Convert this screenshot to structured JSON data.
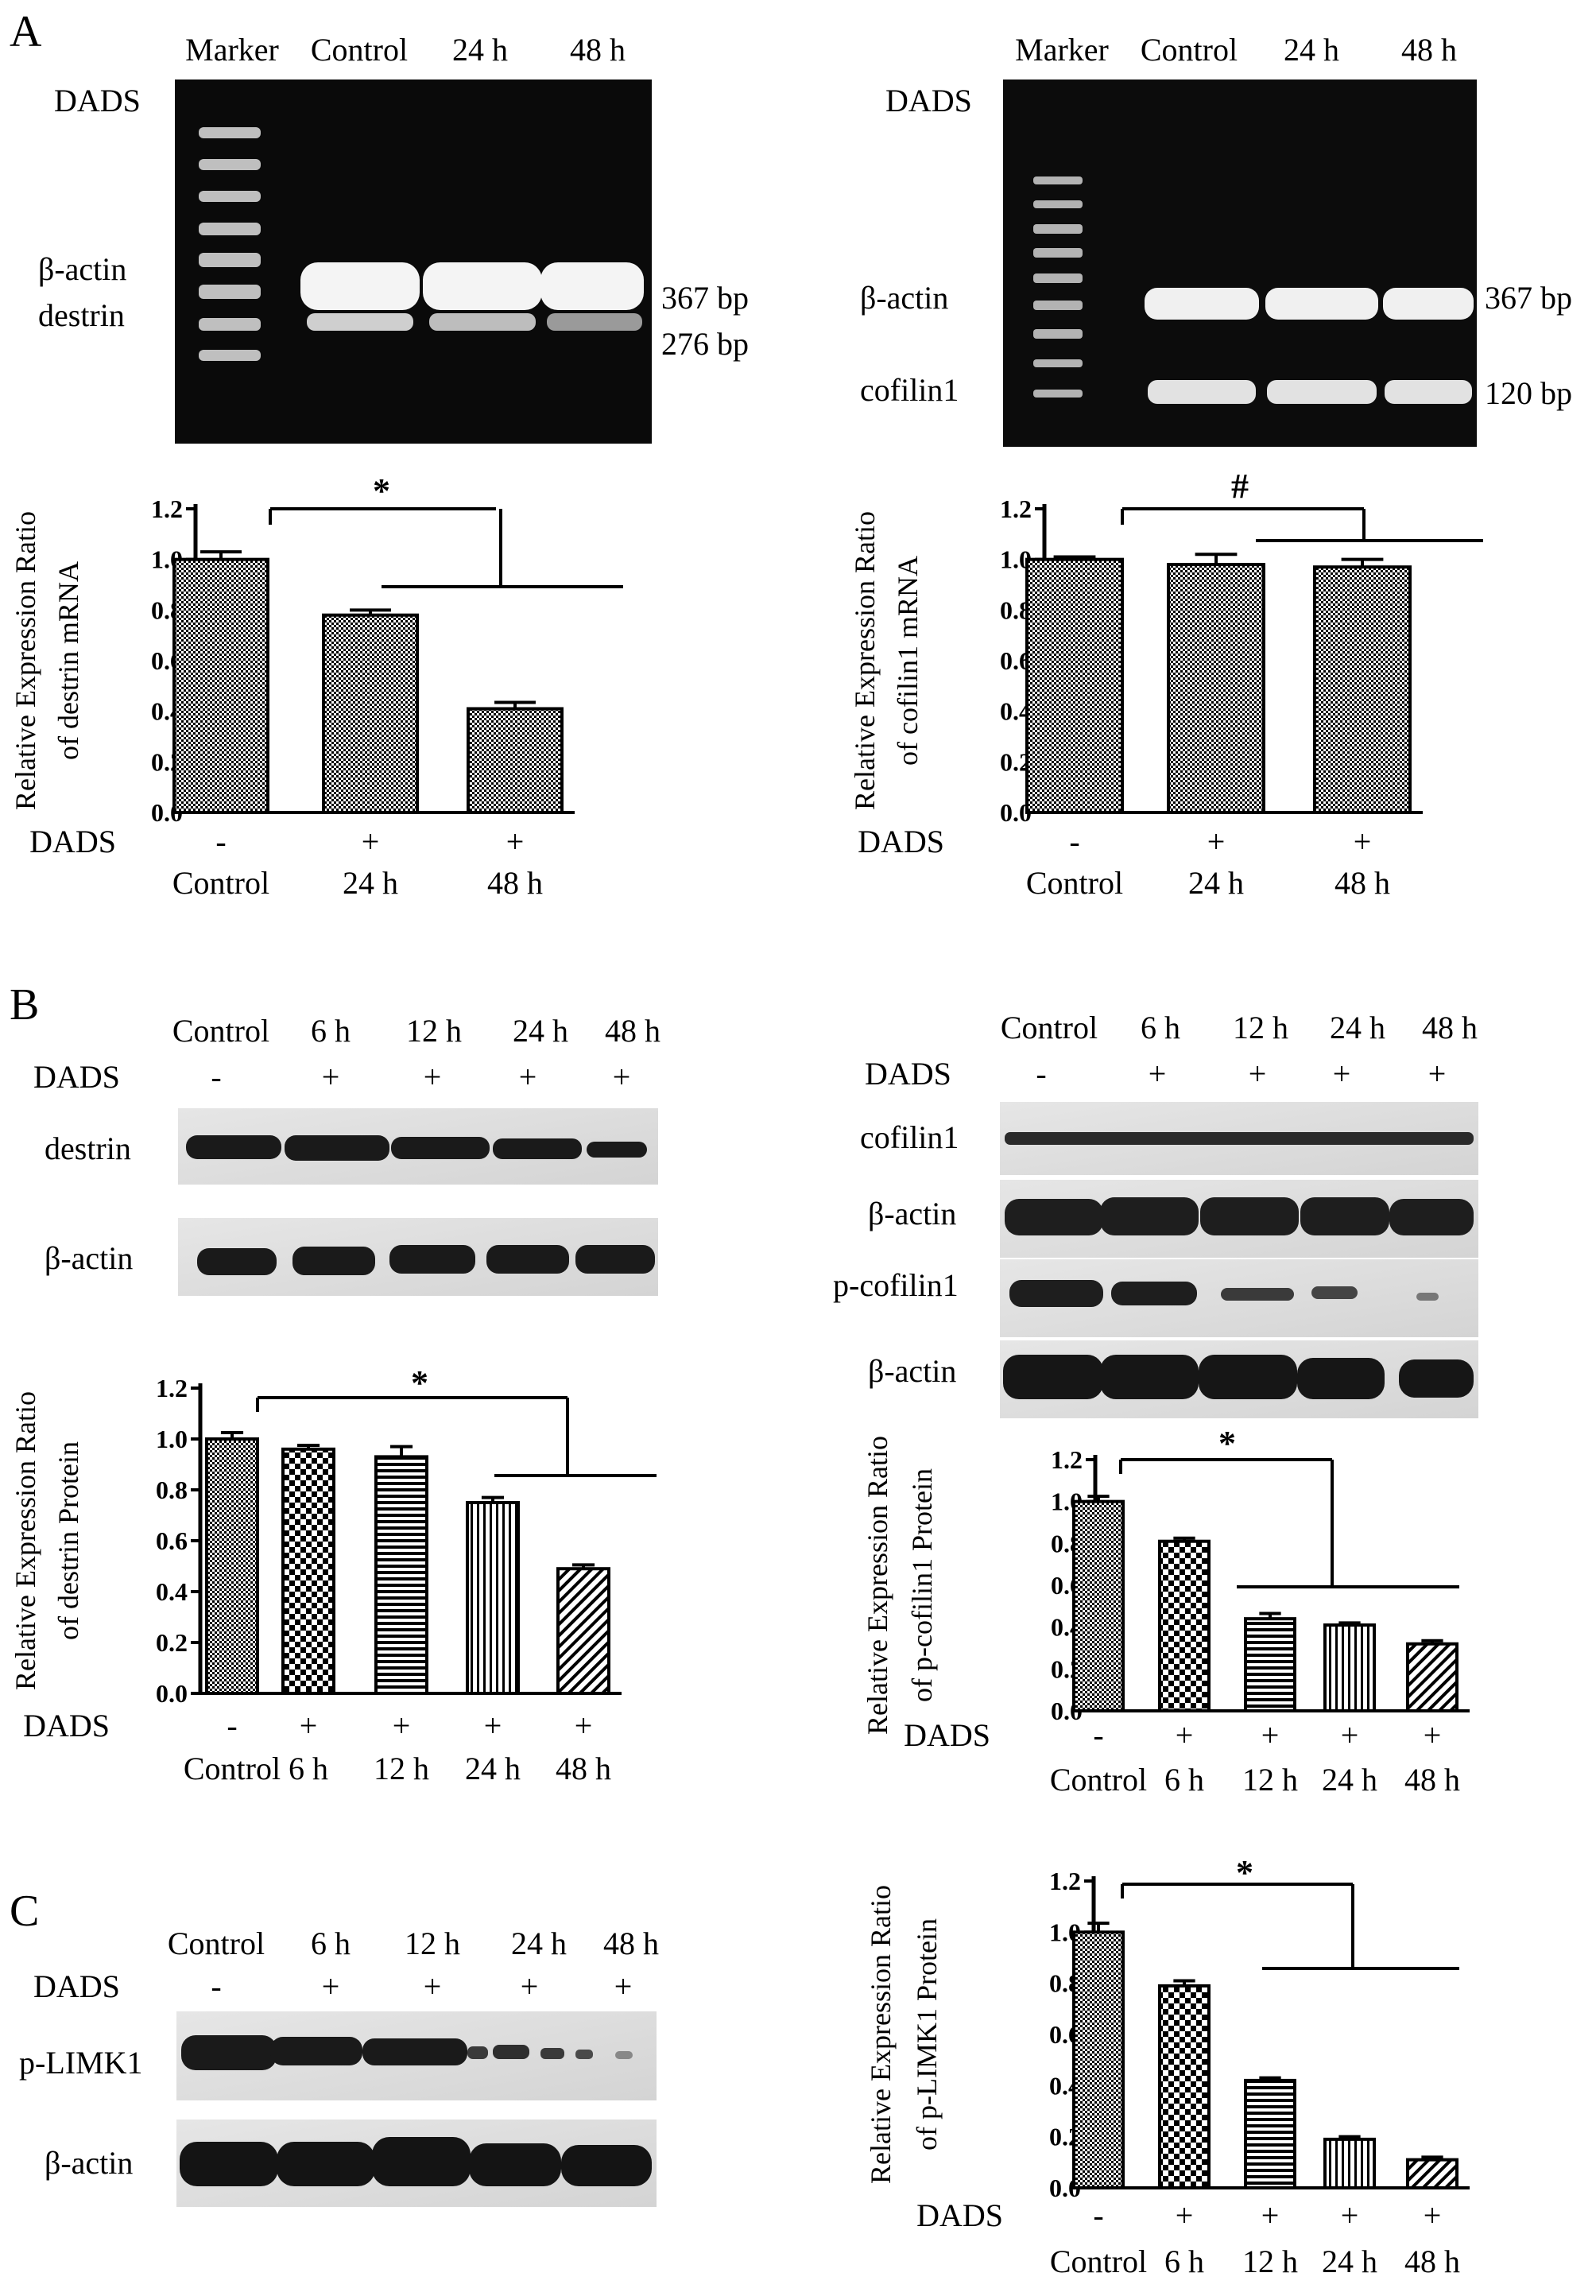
{
  "panels": [
    {
      "letter": "A"
    },
    {
      "letter": "B"
    },
    {
      "letter": "C"
    }
  ],
  "gels": [
    {
      "panel": "A-left",
      "kind": "agarose",
      "lane_labels": [
        "Marker",
        "Control",
        "24 h",
        "48 h"
      ],
      "dads_label": "DADS",
      "dads_signs": [
        "-",
        "+",
        "+"
      ],
      "band_labels": [
        "β-actin",
        "destrin"
      ],
      "size_labels": [
        "367 bp",
        "276 bp"
      ]
    },
    {
      "panel": "A-right",
      "kind": "agarose",
      "lane_labels": [
        "Marker",
        "Control",
        "24 h",
        "48 h"
      ],
      "dads_label": "DADS",
      "dads_signs": [
        "-",
        "+",
        "+"
      ],
      "band_labels": [
        "β-actin",
        "cofilin1"
      ],
      "size_labels": [
        "367 bp",
        "120 bp"
      ]
    },
    {
      "panel": "B-left",
      "kind": "western",
      "lane_labels": [
        "Control",
        "6 h",
        "12 h",
        "24 h",
        "48 h"
      ],
      "dads_label": "DADS",
      "dads_signs": [
        "-",
        "+",
        "+",
        "+",
        "+"
      ],
      "blot_labels": [
        "destrin",
        "β-actin"
      ]
    },
    {
      "panel": "B-right",
      "kind": "western",
      "lane_labels": [
        "Control",
        "6 h",
        "12 h",
        "24 h",
        "48 h"
      ],
      "dads_label": "DADS",
      "dads_signs": [
        "-",
        "+",
        "+",
        "+",
        "+"
      ],
      "blot_labels": [
        "cofilin1",
        "β-actin",
        "p-cofilin1",
        "β-actin"
      ]
    },
    {
      "panel": "C-left",
      "kind": "western",
      "lane_labels": [
        "Control",
        "6 h",
        "12 h",
        "24 h",
        "48 h"
      ],
      "dads_label": "DADS",
      "dads_signs": [
        "-",
        "+",
        "+",
        "+",
        "+"
      ],
      "blot_labels": [
        "p-LIMK1",
        "β-actin"
      ]
    }
  ],
  "chart_data": [
    {
      "type": "bar",
      "panel": "A-left",
      "ylabel": "Relative Expression Ratio of destrin mRNA",
      "ylim": [
        0,
        1.2
      ],
      "yticks": [
        "0.0",
        "0.2",
        "0.4",
        "0.6",
        "0.8",
        "1.0",
        "1.2"
      ],
      "categories": [
        "Control",
        "24 h",
        "48 h"
      ],
      "dads_label": "DADS",
      "dads_signs": [
        "-",
        "+",
        "+"
      ],
      "values": [
        1.0,
        0.78,
        0.41
      ],
      "errors": [
        0.03,
        0.02,
        0.025
      ],
      "significance": "*",
      "grid": false
    },
    {
      "type": "bar",
      "panel": "A-right",
      "ylabel": "Relative Expression Ratio of cofilin1 mRNA",
      "ylim": [
        0,
        1.2
      ],
      "yticks": [
        "0.0",
        "0.2",
        "0.4",
        "0.6",
        "0.8",
        "1.0",
        "1.2"
      ],
      "categories": [
        "Control",
        "24 h",
        "48 h"
      ],
      "dads_label": "DADS",
      "dads_signs": [
        "-",
        "+",
        "+"
      ],
      "values": [
        1.0,
        0.98,
        0.97
      ],
      "errors": [
        0.01,
        0.04,
        0.03
      ],
      "significance": "#",
      "grid": false
    },
    {
      "type": "bar",
      "panel": "B-left",
      "ylabel": "Relative Expression Ratio of destrin Protein",
      "ylim": [
        0,
        1.2
      ],
      "yticks": [
        "0.0",
        "0.2",
        "0.4",
        "0.6",
        "0.8",
        "1.0",
        "1.2"
      ],
      "categories": [
        "Control",
        "6 h",
        "12 h",
        "24 h",
        "48 h"
      ],
      "dads_label": "DADS",
      "dads_signs": [
        "-",
        "+",
        "+",
        "+",
        "+"
      ],
      "values": [
        1.0,
        0.96,
        0.93,
        0.75,
        0.49
      ],
      "errors": [
        0.025,
        0.015,
        0.04,
        0.02,
        0.015
      ],
      "significance": "*",
      "grid": false
    },
    {
      "type": "bar",
      "panel": "B-right",
      "ylabel": "Relative Expression Ratio of p-cofilin1 Protein",
      "ylim": [
        0,
        1.2
      ],
      "yticks": [
        "0.0",
        "0.2",
        "0.4",
        "0.6",
        "0.8",
        "1.0",
        "1.2"
      ],
      "categories": [
        "Control",
        "6 h",
        "12 h",
        "24 h",
        "48 h"
      ],
      "dads_label": "DADS",
      "dads_signs": [
        "-",
        "+",
        "+",
        "+",
        "+"
      ],
      "values": [
        1.0,
        0.81,
        0.44,
        0.41,
        0.32
      ],
      "errors": [
        0.025,
        0.015,
        0.025,
        0.01,
        0.015
      ],
      "significance": "*",
      "grid": false
    },
    {
      "type": "bar",
      "panel": "C-right",
      "ylabel": "Relative Expression Ratio of p-LIMK1 Protein",
      "ylim": [
        0,
        1.2
      ],
      "yticks": [
        "0.0",
        "0.2",
        "0.4",
        "0.6",
        "0.8",
        "1.0",
        "1.2"
      ],
      "categories": [
        "Control",
        "6 h",
        "12 h",
        "24 h",
        "48 h"
      ],
      "dads_label": "DADS",
      "dads_signs": [
        "-",
        "+",
        "+",
        "+",
        "+"
      ],
      "values": [
        1.0,
        0.79,
        0.42,
        0.19,
        0.11
      ],
      "errors": [
        0.035,
        0.02,
        0.01,
        0.01,
        0.01
      ],
      "significance": "*",
      "grid": false
    }
  ]
}
